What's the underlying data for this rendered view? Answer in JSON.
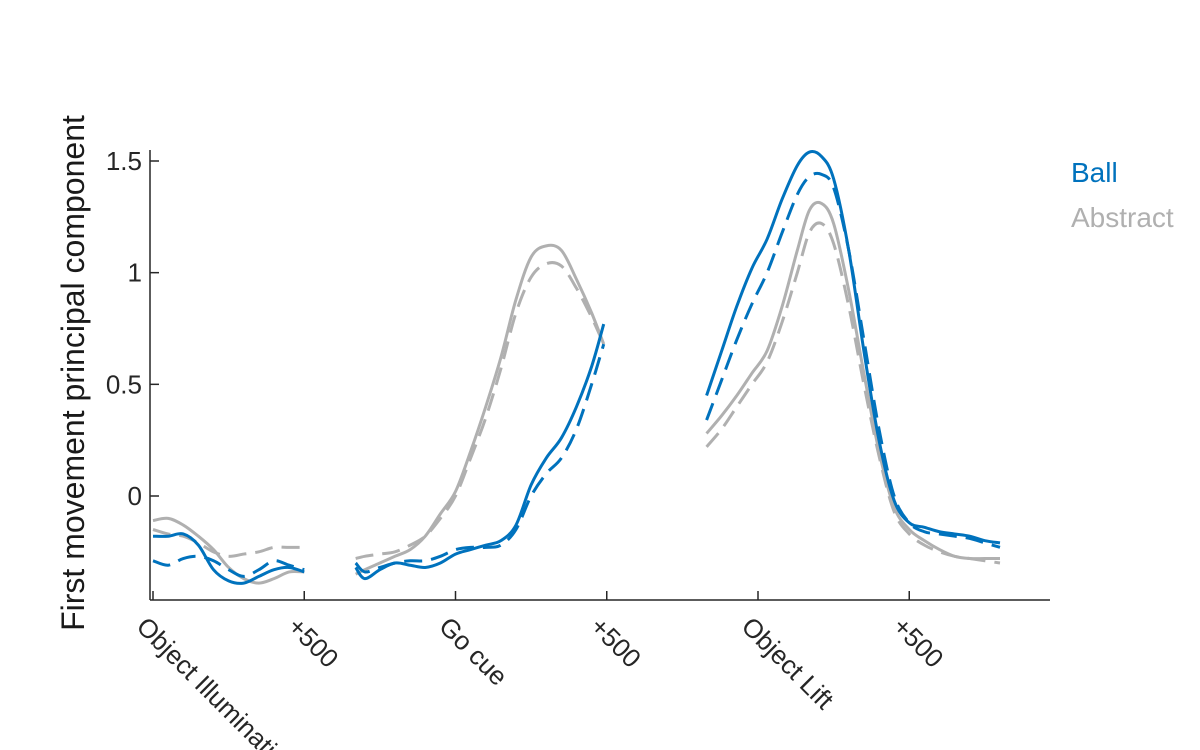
{
  "chart_data": {
    "type": "line",
    "title": "",
    "ylabel": "First movement principal component",
    "xlabel": "",
    "ylim": [
      -0.47,
      1.55
    ],
    "yticks": [
      {
        "value": 1.5,
        "label": "1.5"
      },
      {
        "value": 1,
        "label": "1"
      },
      {
        "value": 0.5,
        "label": "0.5"
      },
      {
        "value": 0,
        "label": "0"
      }
    ],
    "x_domain": [
      -50,
      3050
    ],
    "xticks": [
      {
        "value": 0,
        "label": "Object Illumination"
      },
      {
        "value": 500,
        "label": "+500"
      },
      {
        "value": 1000,
        "label": "Go cue"
      },
      {
        "value": 1500,
        "label": "+500"
      },
      {
        "value": 2000,
        "label": "Object Lift"
      },
      {
        "value": 2500,
        "label": "+500"
      }
    ],
    "grid": false,
    "legend_position": "top-right",
    "colors": {
      "ball": "#0072BD",
      "abstract": "#B0B0B0",
      "axis": "#262626"
    },
    "legend": [
      {
        "label": "Ball",
        "color": "#0072BD"
      },
      {
        "label": "Abstract",
        "color": "#B0B0B0"
      }
    ],
    "series": [
      {
        "name": "Ball",
        "color": "#0072BD",
        "dashed": false,
        "segments": [
          [
            [
              0,
              -0.18
            ],
            [
              50,
              -0.18
            ],
            [
              100,
              -0.17
            ],
            [
              150,
              -0.22
            ],
            [
              200,
              -0.33
            ],
            [
              250,
              -0.38
            ],
            [
              300,
              -0.39
            ],
            [
              350,
              -0.36
            ],
            [
              400,
              -0.33
            ],
            [
              450,
              -0.32
            ],
            [
              500,
              -0.34
            ]
          ],
          [
            [
              670,
              -0.32
            ],
            [
              700,
              -0.37
            ],
            [
              750,
              -0.33
            ],
            [
              800,
              -0.3
            ],
            [
              850,
              -0.31
            ],
            [
              900,
              -0.32
            ],
            [
              950,
              -0.3
            ],
            [
              1000,
              -0.26
            ],
            [
              1050,
              -0.24
            ],
            [
              1100,
              -0.22
            ],
            [
              1150,
              -0.2
            ],
            [
              1200,
              -0.13
            ],
            [
              1250,
              0.05
            ],
            [
              1300,
              0.17
            ],
            [
              1350,
              0.26
            ],
            [
              1400,
              0.4
            ],
            [
              1450,
              0.58
            ],
            [
              1490,
              0.77
            ]
          ],
          [
            [
              1830,
              0.45
            ],
            [
              1880,
              0.65
            ],
            [
              1930,
              0.85
            ],
            [
              1980,
              1.02
            ],
            [
              2030,
              1.15
            ],
            [
              2080,
              1.33
            ],
            [
              2130,
              1.48
            ],
            [
              2170,
              1.54
            ],
            [
              2210,
              1.52
            ],
            [
              2250,
              1.42
            ],
            [
              2300,
              1.1
            ],
            [
              2350,
              0.65
            ],
            [
              2400,
              0.25
            ],
            [
              2450,
              -0.02
            ],
            [
              2500,
              -0.12
            ],
            [
              2550,
              -0.14
            ],
            [
              2600,
              -0.16
            ],
            [
              2650,
              -0.17
            ],
            [
              2700,
              -0.18
            ],
            [
              2750,
              -0.2
            ],
            [
              2800,
              -0.21
            ]
          ]
        ]
      },
      {
        "name": "",
        "color": "#0072BD",
        "dashed": true,
        "segments": [
          [
            [
              0,
              -0.29
            ],
            [
              50,
              -0.31
            ],
            [
              100,
              -0.28
            ],
            [
              150,
              -0.27
            ],
            [
              200,
              -0.29
            ],
            [
              250,
              -0.33
            ],
            [
              300,
              -0.36
            ],
            [
              350,
              -0.33
            ],
            [
              400,
              -0.29
            ],
            [
              450,
              -0.31
            ],
            [
              500,
              -0.33
            ]
          ],
          [
            [
              670,
              -0.3
            ],
            [
              700,
              -0.34
            ],
            [
              750,
              -0.32
            ],
            [
              800,
              -0.3
            ],
            [
              850,
              -0.29
            ],
            [
              900,
              -0.29
            ],
            [
              950,
              -0.27
            ],
            [
              1000,
              -0.24
            ],
            [
              1050,
              -0.23
            ],
            [
              1100,
              -0.23
            ],
            [
              1150,
              -0.22
            ],
            [
              1200,
              -0.15
            ],
            [
              1250,
              0.0
            ],
            [
              1300,
              0.1
            ],
            [
              1350,
              0.17
            ],
            [
              1400,
              0.3
            ],
            [
              1450,
              0.5
            ],
            [
              1490,
              0.68
            ]
          ],
          [
            [
              1830,
              0.34
            ],
            [
              1880,
              0.52
            ],
            [
              1930,
              0.7
            ],
            [
              1980,
              0.86
            ],
            [
              2030,
              1.0
            ],
            [
              2080,
              1.18
            ],
            [
              2130,
              1.35
            ],
            [
              2170,
              1.43
            ],
            [
              2210,
              1.44
            ],
            [
              2250,
              1.38
            ],
            [
              2300,
              1.1
            ],
            [
              2350,
              0.7
            ],
            [
              2400,
              0.3
            ],
            [
              2450,
              0.0
            ],
            [
              2500,
              -0.12
            ],
            [
              2550,
              -0.16
            ],
            [
              2600,
              -0.17
            ],
            [
              2650,
              -0.18
            ],
            [
              2700,
              -0.19
            ],
            [
              2750,
              -0.21
            ],
            [
              2800,
              -0.23
            ]
          ]
        ]
      },
      {
        "name": "Abstract",
        "color": "#B0B0B0",
        "dashed": false,
        "segments": [
          [
            [
              0,
              -0.11
            ],
            [
              50,
              -0.1
            ],
            [
              100,
              -0.13
            ],
            [
              150,
              -0.18
            ],
            [
              200,
              -0.24
            ],
            [
              250,
              -0.32
            ],
            [
              300,
              -0.37
            ],
            [
              350,
              -0.39
            ],
            [
              400,
              -0.37
            ],
            [
              450,
              -0.34
            ],
            [
              500,
              -0.34
            ]
          ],
          [
            [
              670,
              -0.35
            ],
            [
              700,
              -0.33
            ],
            [
              750,
              -0.3
            ],
            [
              800,
              -0.27
            ],
            [
              850,
              -0.24
            ],
            [
              900,
              -0.18
            ],
            [
              950,
              -0.08
            ],
            [
              1000,
              0.02
            ],
            [
              1050,
              0.2
            ],
            [
              1100,
              0.4
            ],
            [
              1150,
              0.62
            ],
            [
              1200,
              0.88
            ],
            [
              1250,
              1.07
            ],
            [
              1300,
              1.12
            ],
            [
              1350,
              1.1
            ],
            [
              1400,
              0.97
            ],
            [
              1450,
              0.82
            ],
            [
              1490,
              0.68
            ]
          ],
          [
            [
              1830,
              0.28
            ],
            [
              1880,
              0.36
            ],
            [
              1930,
              0.45
            ],
            [
              1980,
              0.55
            ],
            [
              2030,
              0.65
            ],
            [
              2080,
              0.85
            ],
            [
              2130,
              1.1
            ],
            [
              2170,
              1.28
            ],
            [
              2210,
              1.31
            ],
            [
              2250,
              1.22
            ],
            [
              2300,
              0.92
            ],
            [
              2350,
              0.55
            ],
            [
              2400,
              0.2
            ],
            [
              2450,
              -0.05
            ],
            [
              2500,
              -0.15
            ],
            [
              2550,
              -0.2
            ],
            [
              2600,
              -0.24
            ],
            [
              2650,
              -0.27
            ],
            [
              2700,
              -0.28
            ],
            [
              2750,
              -0.28
            ],
            [
              2800,
              -0.28
            ]
          ]
        ]
      },
      {
        "name": "",
        "color": "#B0B0B0",
        "dashed": true,
        "segments": [
          [
            [
              0,
              -0.15
            ],
            [
              50,
              -0.17
            ],
            [
              100,
              -0.18
            ],
            [
              150,
              -0.21
            ],
            [
              200,
              -0.25
            ],
            [
              250,
              -0.27
            ],
            [
              300,
              -0.26
            ],
            [
              350,
              -0.25
            ],
            [
              400,
              -0.23
            ],
            [
              450,
              -0.23
            ],
            [
              500,
              -0.23
            ]
          ],
          [
            [
              670,
              -0.28
            ],
            [
              700,
              -0.27
            ],
            [
              750,
              -0.26
            ],
            [
              800,
              -0.25
            ],
            [
              850,
              -0.22
            ],
            [
              900,
              -0.18
            ],
            [
              950,
              -0.1
            ],
            [
              1000,
              0.0
            ],
            [
              1050,
              0.17
            ],
            [
              1100,
              0.35
            ],
            [
              1150,
              0.57
            ],
            [
              1200,
              0.82
            ],
            [
              1250,
              0.98
            ],
            [
              1300,
              1.04
            ],
            [
              1350,
              1.03
            ],
            [
              1400,
              0.93
            ],
            [
              1450,
              0.8
            ],
            [
              1490,
              0.68
            ]
          ],
          [
            [
              1830,
              0.22
            ],
            [
              1880,
              0.3
            ],
            [
              1930,
              0.4
            ],
            [
              1980,
              0.5
            ],
            [
              2030,
              0.6
            ],
            [
              2080,
              0.78
            ],
            [
              2130,
              1.0
            ],
            [
              2170,
              1.18
            ],
            [
              2210,
              1.22
            ],
            [
              2250,
              1.13
            ],
            [
              2300,
              0.85
            ],
            [
              2350,
              0.5
            ],
            [
              2400,
              0.18
            ],
            [
              2450,
              -0.07
            ],
            [
              2500,
              -0.17
            ],
            [
              2550,
              -0.22
            ],
            [
              2600,
              -0.25
            ],
            [
              2650,
              -0.27
            ],
            [
              2700,
              -0.28
            ],
            [
              2750,
              -0.29
            ],
            [
              2800,
              -0.3
            ]
          ]
        ]
      }
    ]
  }
}
